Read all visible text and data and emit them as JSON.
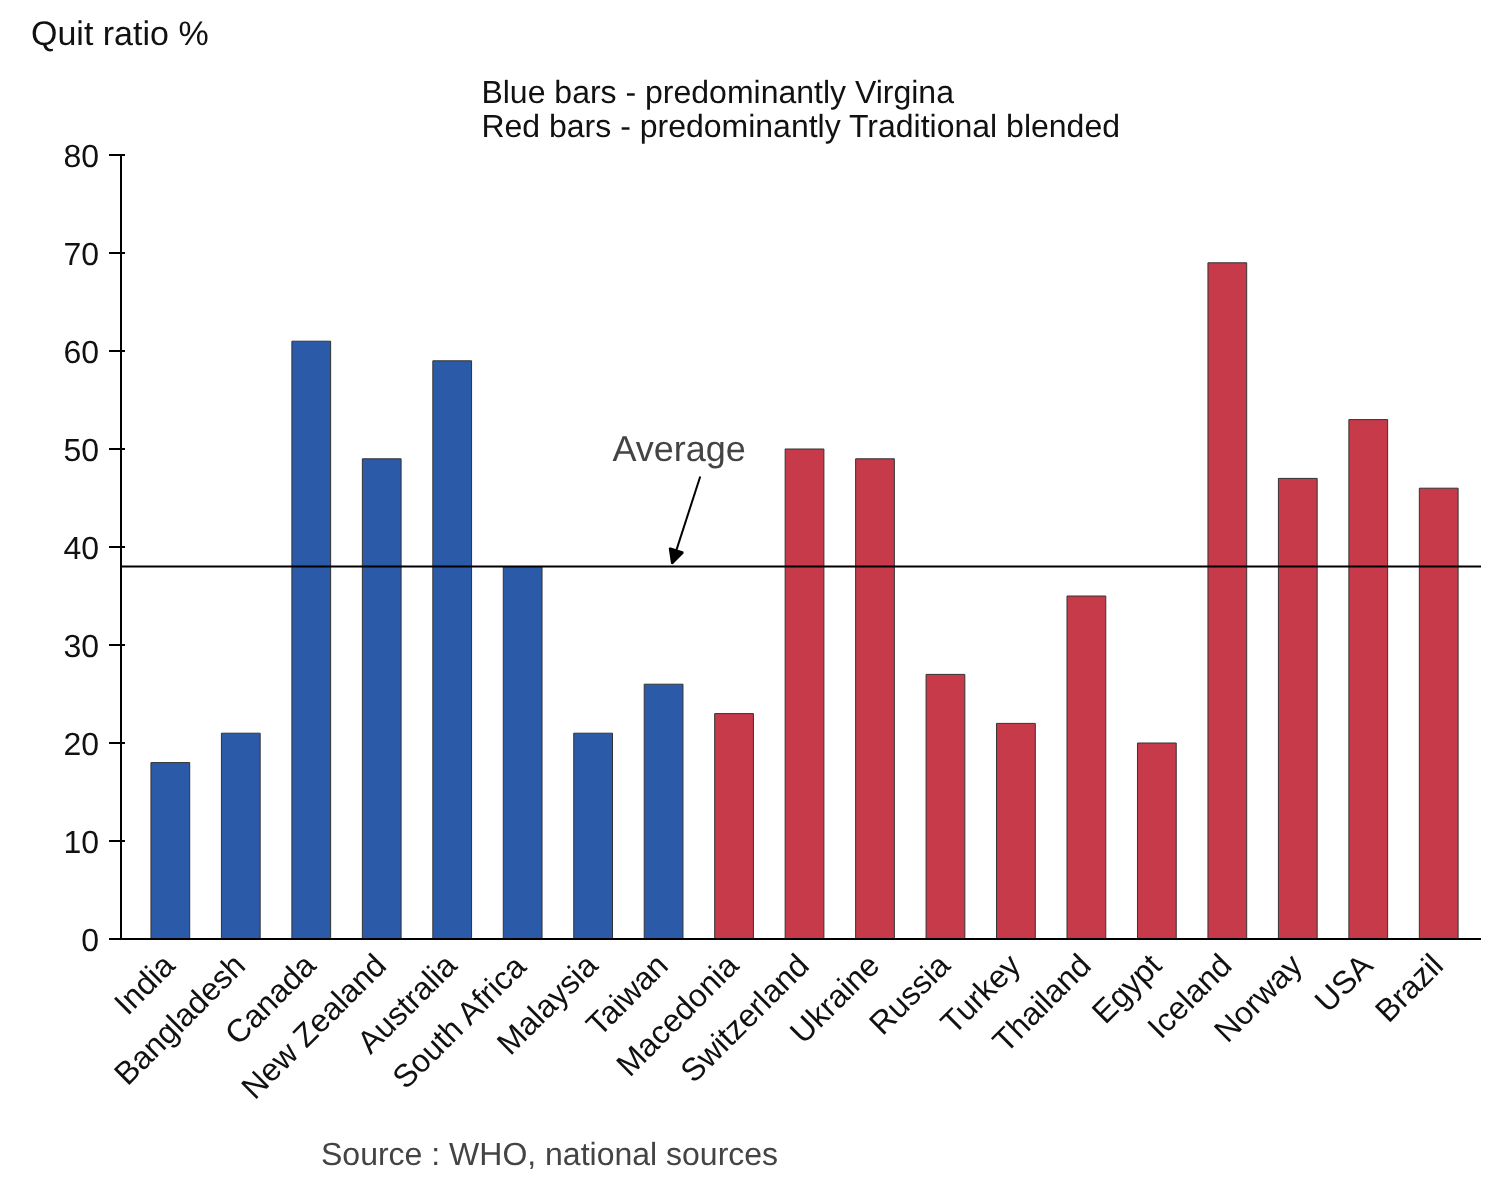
{
  "chart_data": {
    "type": "bar",
    "title": "Blue bars - predominantly Virgina\nRed bars - predominantly Traditional blended",
    "ylabel": "Quit ratio %",
    "categories": [
      "India",
      "Bangladesh",
      "Canada",
      "New Zealand",
      "Australia",
      "South Africa",
      "Malaysia",
      "Taiwan",
      "Macedonia",
      "Switzerland",
      "Ukraine",
      "Russia",
      "Turkey",
      "Thailand",
      "Egypt",
      "Iceland",
      "Norway",
      "USA",
      "Brazil"
    ],
    "values": [
      18,
      21,
      61,
      49,
      59,
      38,
      21,
      26,
      23,
      50,
      49,
      27,
      22,
      35,
      20,
      69,
      47,
      53,
      46
    ],
    "colors": [
      "#2b5aa8",
      "#2b5aa8",
      "#2b5aa8",
      "#2b5aa8",
      "#2b5aa8",
      "#2b5aa8",
      "#2b5aa8",
      "#2b5aa8",
      "#c63a4a",
      "#c63a4a",
      "#c63a4a",
      "#c63a4a",
      "#c63a4a",
      "#c63a4a",
      "#c63a4a",
      "#c63a4a",
      "#c63a4a",
      "#c63a4a",
      "#c63a4a"
    ],
    "ylim": [
      0,
      80
    ],
    "yticks": [
      0,
      10,
      20,
      30,
      40,
      50,
      60,
      70,
      80
    ],
    "ref_lines": [
      {
        "axis": "y",
        "value": 38,
        "label": "Average",
        "color": "#000000"
      }
    ],
    "annotations": [
      "Source : WHO, national sources"
    ],
    "grid": false
  }
}
